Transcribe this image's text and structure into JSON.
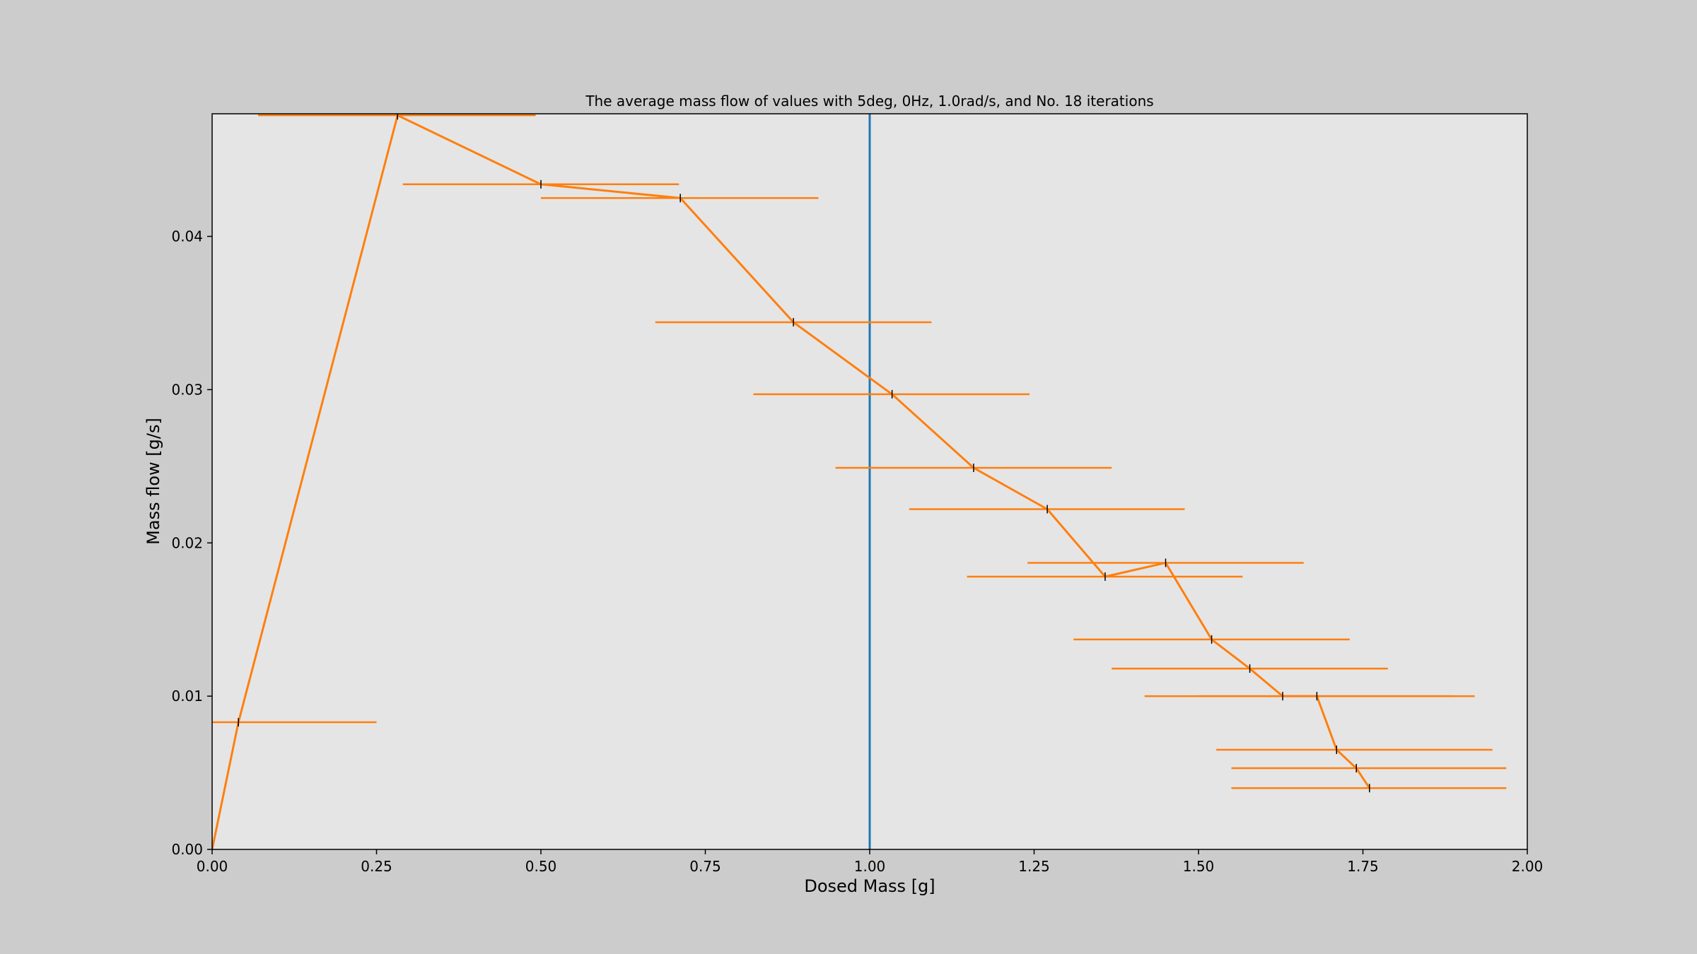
{
  "chart_data": {
    "type": "line",
    "title": "The average mass flow of values with 5deg, 0Hz, 1.0rad/s, and No. 18 iterations",
    "xlabel": "Dosed Mass [g]",
    "ylabel": "Mass flow [g/s]",
    "xlim": [
      0.0,
      2.0
    ],
    "ylim": [
      0.0,
      0.048
    ],
    "xticks": [
      "0.00",
      "0.25",
      "0.50",
      "0.75",
      "1.00",
      "1.25",
      "1.50",
      "1.75",
      "2.00"
    ],
    "yticks": [
      "0.00",
      "0.01",
      "0.02",
      "0.03",
      "0.04"
    ],
    "grid": false,
    "colors": {
      "figure_bg": "#cccccc",
      "axes_bg": "#e5e5e5",
      "series": "#ff7f0e",
      "vline": "#1f77b4",
      "marker": "#000000"
    },
    "vline": {
      "x": 1.0
    },
    "series": [
      {
        "x": [
          0.0,
          0.04,
          0.282,
          0.5,
          0.712,
          0.884,
          1.034,
          1.158,
          1.27,
          1.358,
          1.45,
          1.52,
          1.578,
          1.628,
          1.68,
          1.71,
          1.74,
          1.76
        ],
        "y": [
          0.0,
          0.0083,
          0.0479,
          0.0434,
          0.0425,
          0.0344,
          0.0297,
          0.0249,
          0.0222,
          0.0178,
          0.0187,
          0.0137,
          0.0118,
          0.01,
          0.01,
          0.0065,
          0.0053,
          0.004
        ],
        "xerr_low": [
          0.0,
          -0.06,
          0.07,
          0.29,
          0.5,
          0.674,
          0.823,
          0.948,
          1.06,
          1.148,
          1.24,
          1.31,
          1.368,
          1.418,
          1.5,
          1.527,
          1.55,
          1.55
        ],
        "xerr_high": [
          0.0,
          0.25,
          0.492,
          0.71,
          0.922,
          1.094,
          1.243,
          1.368,
          1.479,
          1.567,
          1.66,
          1.73,
          1.788,
          1.888,
          1.92,
          1.947,
          1.968,
          1.968
        ]
      }
    ]
  }
}
